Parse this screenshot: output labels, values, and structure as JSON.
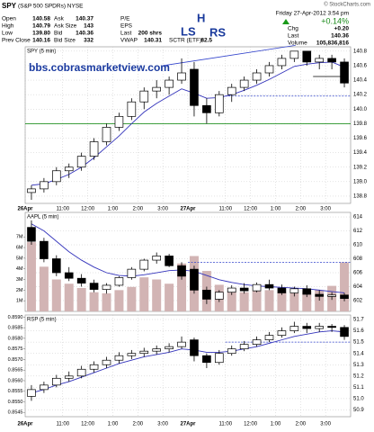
{
  "header": {
    "symbol": "SPY",
    "name": "(S&P 500 SPDRs) NYSE",
    "copyright": "© StockCharts.com",
    "date": "Friday 27-Apr-2012 3:54 pm",
    "change_pct": "+0.14%",
    "fields": [
      {
        "label": "Open",
        "value": "140.58"
      },
      {
        "label": "Ask",
        "value": "140.37"
      },
      {
        "label": "P/E"
      },
      {
        "label": "High",
        "value": "140.79"
      },
      {
        "label": "Ask Size",
        "value": "143"
      },
      {
        "label": "EPS"
      },
      {
        "label": "Low",
        "value": "139.80"
      },
      {
        "label": "Bid",
        "value": "140.36"
      },
      {
        "label": "Last",
        "value": "200 shrs"
      },
      {
        "label": "Prev Close",
        "value": "140.16"
      },
      {
        "label": "Bid Size",
        "value": "332"
      },
      {
        "label": "VWAP",
        "value": "140.31"
      },
      {
        "label": "SCTR (ETF):",
        "value": "82.5"
      }
    ],
    "right_fields": [
      {
        "label": "Chg",
        "value": "+0.20"
      },
      {
        "label": "Last",
        "value": "140.36"
      },
      {
        "label": "Volume",
        "value": "105,836,816"
      }
    ]
  },
  "chart_data": [
    {
      "type": "candlestick",
      "title": "SPY (5 min)",
      "x": [
        0.25,
        0.75,
        1.25,
        1.75,
        2.25,
        2.75,
        3.25,
        3.75,
        4.25,
        4.75,
        5.25,
        5.75,
        6.25,
        6.75,
        7.25,
        7.75,
        8.25,
        8.75,
        9.25,
        9.75,
        10.25,
        10.75,
        11.25,
        11.75,
        12.25,
        12.75
      ],
      "open": [
        138.85,
        138.9,
        139.0,
        139.15,
        139.2,
        139.35,
        139.55,
        139.75,
        139.9,
        140.1,
        140.25,
        140.3,
        140.4,
        140.55,
        140.05,
        139.95,
        140.2,
        140.3,
        140.4,
        140.5,
        140.6,
        140.7,
        140.8,
        140.65,
        140.7,
        140.65
      ],
      "high": [
        138.95,
        139.05,
        139.2,
        139.25,
        139.4,
        139.6,
        139.8,
        139.95,
        140.15,
        140.3,
        140.4,
        140.45,
        140.7,
        140.65,
        140.15,
        140.25,
        140.35,
        140.45,
        140.55,
        140.65,
        140.75,
        140.79,
        140.78,
        140.75,
        140.75,
        140.7
      ],
      "low": [
        138.75,
        138.85,
        138.95,
        139.05,
        139.15,
        139.3,
        139.5,
        139.7,
        139.85,
        140.0,
        140.15,
        140.2,
        140.35,
        139.9,
        139.8,
        139.9,
        140.1,
        140.25,
        140.35,
        140.45,
        140.55,
        140.65,
        140.6,
        140.55,
        140.55,
        140.3
      ],
      "close": [
        138.9,
        139.0,
        139.15,
        139.2,
        139.35,
        139.55,
        139.75,
        139.9,
        140.1,
        140.25,
        140.3,
        140.4,
        140.5,
        140.05,
        139.95,
        140.2,
        140.3,
        140.4,
        140.5,
        140.6,
        140.7,
        140.8,
        140.65,
        140.7,
        140.65,
        140.36
      ],
      "color": "#000000",
      "ma": {
        "color": "#3333bb",
        "values": [
          138.95,
          138.97,
          139.03,
          139.1,
          139.2,
          139.33,
          139.48,
          139.63,
          139.8,
          139.96,
          140.08,
          140.18,
          140.28,
          140.22,
          140.15,
          140.16,
          140.2,
          140.26,
          140.33,
          140.41,
          140.5,
          140.59,
          140.62,
          140.64,
          140.65,
          140.58
        ]
      },
      "lines": [
        {
          "x": [
            0,
            13
          ],
          "y": [
            139.8,
            139.8
          ],
          "color": "#008000",
          "dashed": false
        },
        {
          "x": [
            5.5,
            10.8
          ],
          "y": [
            140.6,
            140.88
          ],
          "color": "#3344cc",
          "dashed": false
        },
        {
          "x": [
            8,
            13
          ],
          "y": [
            140.18,
            140.18
          ],
          "color": "#3344cc",
          "dashed": true
        },
        {
          "x": [
            11.5,
            12.6
          ],
          "y": [
            140.45,
            140.45
          ],
          "color": "#000000",
          "dashed": false
        }
      ],
      "annotations": [
        {
          "text": "LS"
        },
        {
          "text": "H"
        },
        {
          "text": "RS"
        },
        {
          "text": "bbs.cobrasmarketview.com"
        }
      ],
      "xlim": [
        0,
        13
      ],
      "xticks": [
        {
          "value": 0,
          "label": "26Apr"
        },
        {
          "value": 1.5,
          "label": "11:00"
        },
        {
          "value": 2.5,
          "label": "12:00"
        },
        {
          "value": 3.5,
          "label": "1:00"
        },
        {
          "value": 4.5,
          "label": "2:00"
        },
        {
          "value": 5.5,
          "label": "3:00"
        },
        {
          "value": 6.5,
          "label": "27Apr"
        },
        {
          "value": 8,
          "label": "11:00"
        },
        {
          "value": 9,
          "label": "12:00"
        },
        {
          "value": 10,
          "label": "1:00"
        },
        {
          "value": 11,
          "label": "2:00"
        },
        {
          "value": 12,
          "label": "3:00"
        }
      ],
      "ylim": [
        138.7,
        140.86
      ],
      "yticks": [
        138.8,
        {
          "value": 139,
          "label": "139.0"
        },
        139.2,
        139.4,
        139.6,
        139.8,
        {
          "value": 140,
          "label": "140.0"
        },
        140.2,
        140.4,
        140.6,
        140.8
      ],
      "grid": true
    },
    {
      "type": "candlestick",
      "title": "AAPL (5 min)",
      "x": [
        0.25,
        0.75,
        1.25,
        1.75,
        2.25,
        2.75,
        3.25,
        3.75,
        4.25,
        4.75,
        5.25,
        5.75,
        6.25,
        6.75,
        7.25,
        7.75,
        8.25,
        8.75,
        9.25,
        9.75,
        10.25,
        10.75,
        11.25,
        11.75,
        12.25,
        12.75
      ],
      "open": [
        612.5,
        610.5,
        608.0,
        606.0,
        605.2,
        604.5,
        603.6,
        604.2,
        605.3,
        606.5,
        607.8,
        608.4,
        607.0,
        606.5,
        603.5,
        602.2,
        603.2,
        603.8,
        603.4,
        604.3,
        603.8,
        603.1,
        603.7,
        602.9,
        602.6,
        602.8
      ],
      "high": [
        613.5,
        611.0,
        608.5,
        606.8,
        605.8,
        605.0,
        604.5,
        605.5,
        606.8,
        608.0,
        608.9,
        608.7,
        607.5,
        607.0,
        604.0,
        603.5,
        604.2,
        604.5,
        604.6,
        605.0,
        604.3,
        604.0,
        604.2,
        603.5,
        603.2,
        603.1
      ],
      "low": [
        610.0,
        607.5,
        605.5,
        604.8,
        604.0,
        603.2,
        603.0,
        604.0,
        605.0,
        606.2,
        607.3,
        606.8,
        605.0,
        603.0,
        601.5,
        601.8,
        602.8,
        603.0,
        603.2,
        603.5,
        602.8,
        602.6,
        602.5,
        602.0,
        602.1,
        601.9
      ],
      "close": [
        610.5,
        608.0,
        606.0,
        605.2,
        604.5,
        603.6,
        604.2,
        605.3,
        606.5,
        607.8,
        608.4,
        607.0,
        605.5,
        603.5,
        602.2,
        603.2,
        603.8,
        603.4,
        604.3,
        603.8,
        603.1,
        603.7,
        602.9,
        602.6,
        602.8,
        602.3
      ],
      "color": "#000000",
      "ma": {
        "color": "#3333bb",
        "values": [
          613.0,
          612.0,
          610.5,
          609.0,
          607.8,
          606.8,
          606.0,
          605.6,
          605.5,
          605.7,
          606.0,
          606.3,
          606.4,
          606.2,
          605.6,
          605.0,
          604.6,
          604.3,
          604.1,
          604.0,
          603.9,
          603.8,
          603.7,
          603.5,
          603.3,
          603.1
        ]
      },
      "lines": [
        {
          "x": [
            6.5,
            13
          ],
          "y": [
            607.5,
            607.5
          ],
          "color": "#3344cc",
          "dashed": true
        }
      ],
      "series": [
        {
          "axis": "y2",
          "color": "#d2b4b4",
          "values": [
            6500000,
            4200000,
            3000000,
            2600000,
            2200000,
            1800000,
            1700000,
            2000000,
            2300000,
            3200000,
            3000000,
            2600000,
            4500000,
            5200000,
            3800000,
            2500000,
            2200000,
            1800000,
            1900000,
            2000000,
            1800000,
            1700000,
            1900000,
            2000000,
            2400000,
            4600000
          ]
        }
      ],
      "xlim": [
        0,
        13
      ],
      "ylim": [
        600.45,
        614.65
      ],
      "yticks": [
        602,
        604,
        606,
        608,
        610,
        612,
        614
      ],
      "y2lim": [
        0,
        9300000
      ],
      "y2ticks": [
        {
          "value": 1000000,
          "label": "1M"
        },
        {
          "value": 2000000,
          "label": "2M"
        },
        {
          "value": 3000000,
          "label": "3M"
        },
        {
          "value": 4000000,
          "label": "4M"
        },
        {
          "value": 5000000,
          "label": "5M"
        },
        {
          "value": 6000000,
          "label": "6M"
        },
        {
          "value": 7000000,
          "label": "7M"
        }
      ],
      "grid": true
    },
    {
      "type": "candlestick",
      "title": "RSP (5 min)",
      "x": [
        0.25,
        0.75,
        1.25,
        1.75,
        2.25,
        2.75,
        3.25,
        3.75,
        4.25,
        4.75,
        5.25,
        5.75,
        6.25,
        6.75,
        7.25,
        7.75,
        8.25,
        8.75,
        9.25,
        9.75,
        10.25,
        10.75,
        11.25,
        11.75,
        12.25,
        12.75
      ],
      "open": [
        51.02,
        51.08,
        51.12,
        51.18,
        51.2,
        51.26,
        51.3,
        51.34,
        51.38,
        51.4,
        51.42,
        51.44,
        51.46,
        51.52,
        51.38,
        51.32,
        51.4,
        51.44,
        51.48,
        51.52,
        51.56,
        51.6,
        51.64,
        51.62,
        51.64,
        51.63
      ],
      "high": [
        51.12,
        51.15,
        51.21,
        51.24,
        51.29,
        51.33,
        51.37,
        51.41,
        51.43,
        51.45,
        51.47,
        51.49,
        51.55,
        51.54,
        51.4,
        51.43,
        51.47,
        51.51,
        51.55,
        51.59,
        51.63,
        51.68,
        51.67,
        51.67,
        51.66,
        51.65
      ],
      "low": [
        50.98,
        51.05,
        51.1,
        51.15,
        51.18,
        51.23,
        51.27,
        51.31,
        51.35,
        51.37,
        51.39,
        51.41,
        51.44,
        51.33,
        51.27,
        51.3,
        51.38,
        51.42,
        51.46,
        51.5,
        51.54,
        51.58,
        51.58,
        51.59,
        51.59,
        51.52
      ],
      "close": [
        51.08,
        51.12,
        51.18,
        51.2,
        51.26,
        51.3,
        51.34,
        51.38,
        51.4,
        51.42,
        51.44,
        51.46,
        51.5,
        51.38,
        51.32,
        51.4,
        51.44,
        51.48,
        51.52,
        51.56,
        51.6,
        51.64,
        51.62,
        51.64,
        51.63,
        51.55
      ],
      "color": "#000000",
      "ma": {
        "color": "#3333bb",
        "values": [
          51.05,
          51.08,
          51.12,
          51.15,
          51.19,
          51.23,
          51.27,
          51.31,
          51.34,
          51.37,
          51.39,
          51.41,
          51.44,
          51.43,
          51.41,
          51.41,
          51.42,
          51.44,
          51.46,
          51.49,
          51.52,
          51.55,
          51.57,
          51.59,
          51.6,
          51.59
        ]
      },
      "lines": [
        {
          "x": [
            8,
            13
          ],
          "y": [
            51.5,
            51.5
          ],
          "color": "#3344cc",
          "dashed": true
        }
      ],
      "xlim": [
        0,
        13
      ],
      "xticks": [
        {
          "value": 0,
          "label": "26Apr"
        },
        {
          "value": 1.5,
          "label": "11:00"
        },
        {
          "value": 2.5,
          "label": "12:00"
        },
        {
          "value": 3.5,
          "label": "1:00"
        },
        {
          "value": 4.5,
          "label": "2:00"
        },
        {
          "value": 5.5,
          "label": "3:00"
        },
        {
          "value": 6.5,
          "label": "27Apr"
        },
        {
          "value": 8,
          "label": "11:00"
        },
        {
          "value": 9,
          "label": "12:00"
        },
        {
          "value": 10,
          "label": "1:00"
        },
        {
          "value": 11,
          "label": "2:00"
        },
        {
          "value": 12,
          "label": "3:00"
        }
      ],
      "ylim": [
        50.84,
        51.74
      ],
      "yticks": [
        50.9,
        {
          "value": 51,
          "label": "51.0"
        },
        51.1,
        51.2,
        51.3,
        51.4,
        51.5,
        51.6,
        51.7
      ],
      "y2lim": [
        0.8543,
        0.8591
      ],
      "y2ticks": [
        0.8545,
        {
          "value": 0.855,
          "label": "0.8550"
        },
        0.8555,
        {
          "value": 0.856,
          "label": "0.8560"
        },
        0.8565,
        {
          "value": 0.857,
          "label": "0.8570"
        },
        0.8575,
        {
          "value": 0.858,
          "label": "0.8580"
        },
        0.8585,
        {
          "value": 0.859,
          "label": "0.8590"
        }
      ],
      "grid": true
    }
  ]
}
